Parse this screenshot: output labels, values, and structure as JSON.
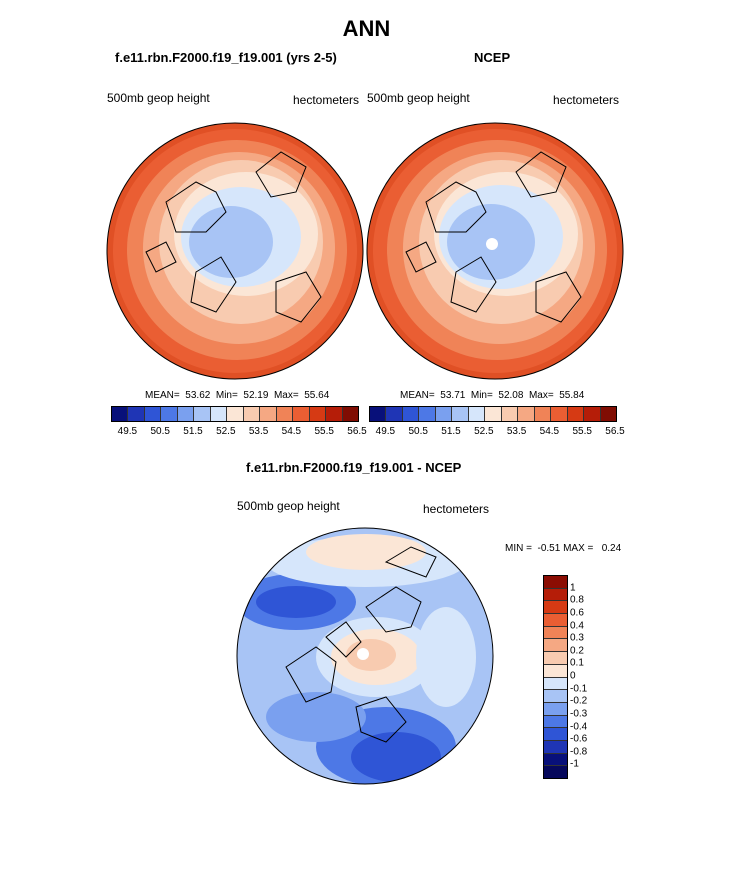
{
  "title": "ANN",
  "panels": {
    "left": {
      "subtitle": "f.e11.rbn.F2000.f19_f19.001 (yrs 2-5)",
      "variable_label": "500mb geop height",
      "units_label": "hectometers",
      "stats": "MEAN=  53.62  Min=  52.19  Max=  55.64"
    },
    "right": {
      "subtitle": "NCEP",
      "variable_label": "500mb geop height",
      "units_label": "hectometers",
      "stats": "MEAN=  53.71  Min=  52.08  Max=  55.84"
    },
    "diff": {
      "subtitle": "f.e11.rbn.F2000.f19_f19.001 - NCEP",
      "variable_label": "500mb geop height",
      "units_label": "hectometers",
      "stats": "MIN =  -0.51 MAX =   0.24"
    }
  },
  "colorbar_top": {
    "tick_labels": [
      "49.5",
      "50.5",
      "51.5",
      "52.5",
      "53.5",
      "54.5",
      "55.5",
      "56.5"
    ],
    "colors": [
      "#08107a",
      "#1f35b5",
      "#2f55d6",
      "#4d78e6",
      "#7aa0ef",
      "#a8c4f5",
      "#d6e6fb",
      "#fbe6d6",
      "#f8cbb0",
      "#f5a883",
      "#f08357",
      "#ea5e33",
      "#d63a14",
      "#b51d08",
      "#800d03"
    ]
  },
  "colorbar_diff": {
    "tick_labels": [
      "1",
      "0.8",
      "0.6",
      "0.4",
      "0.3",
      "0.2",
      "0.1",
      "0",
      "-0.1",
      "-0.2",
      "-0.3",
      "-0.4",
      "-0.6",
      "-0.8",
      "-1"
    ],
    "colors": [
      "#8b0d03",
      "#b51d08",
      "#d63a14",
      "#ea5e33",
      "#f08357",
      "#f5a883",
      "#f8cbb0",
      "#fbe6d6",
      "#d6e6fb",
      "#a8c4f5",
      "#7aa0ef",
      "#4d78e6",
      "#2f55d6",
      "#1f35b5",
      "#08107a",
      "#06085c"
    ]
  }
}
